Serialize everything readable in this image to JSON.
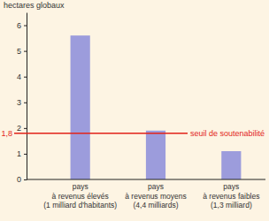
{
  "chart_data": {
    "type": "bar",
    "y_label": "hectares globaux",
    "categories": [
      "pays\nà revenus élevés\n(1 milliard d'habitants)",
      "pays\nà revenus moyens\n(4,4 milliards)",
      "pays\nà revenus faibles\n(1,3 milliard)"
    ],
    "values": [
      5.6,
      1.9,
      1.1
    ],
    "color": "#9c9cdc",
    "ylim": [
      0,
      6.5
    ],
    "yticks": [
      0,
      1,
      2,
      3,
      4,
      5,
      6
    ],
    "grid": false,
    "reference_line": {
      "value": 1.8,
      "label": "1,8",
      "text": "seuil de soutenabilité",
      "color": "#e2231a"
    }
  }
}
